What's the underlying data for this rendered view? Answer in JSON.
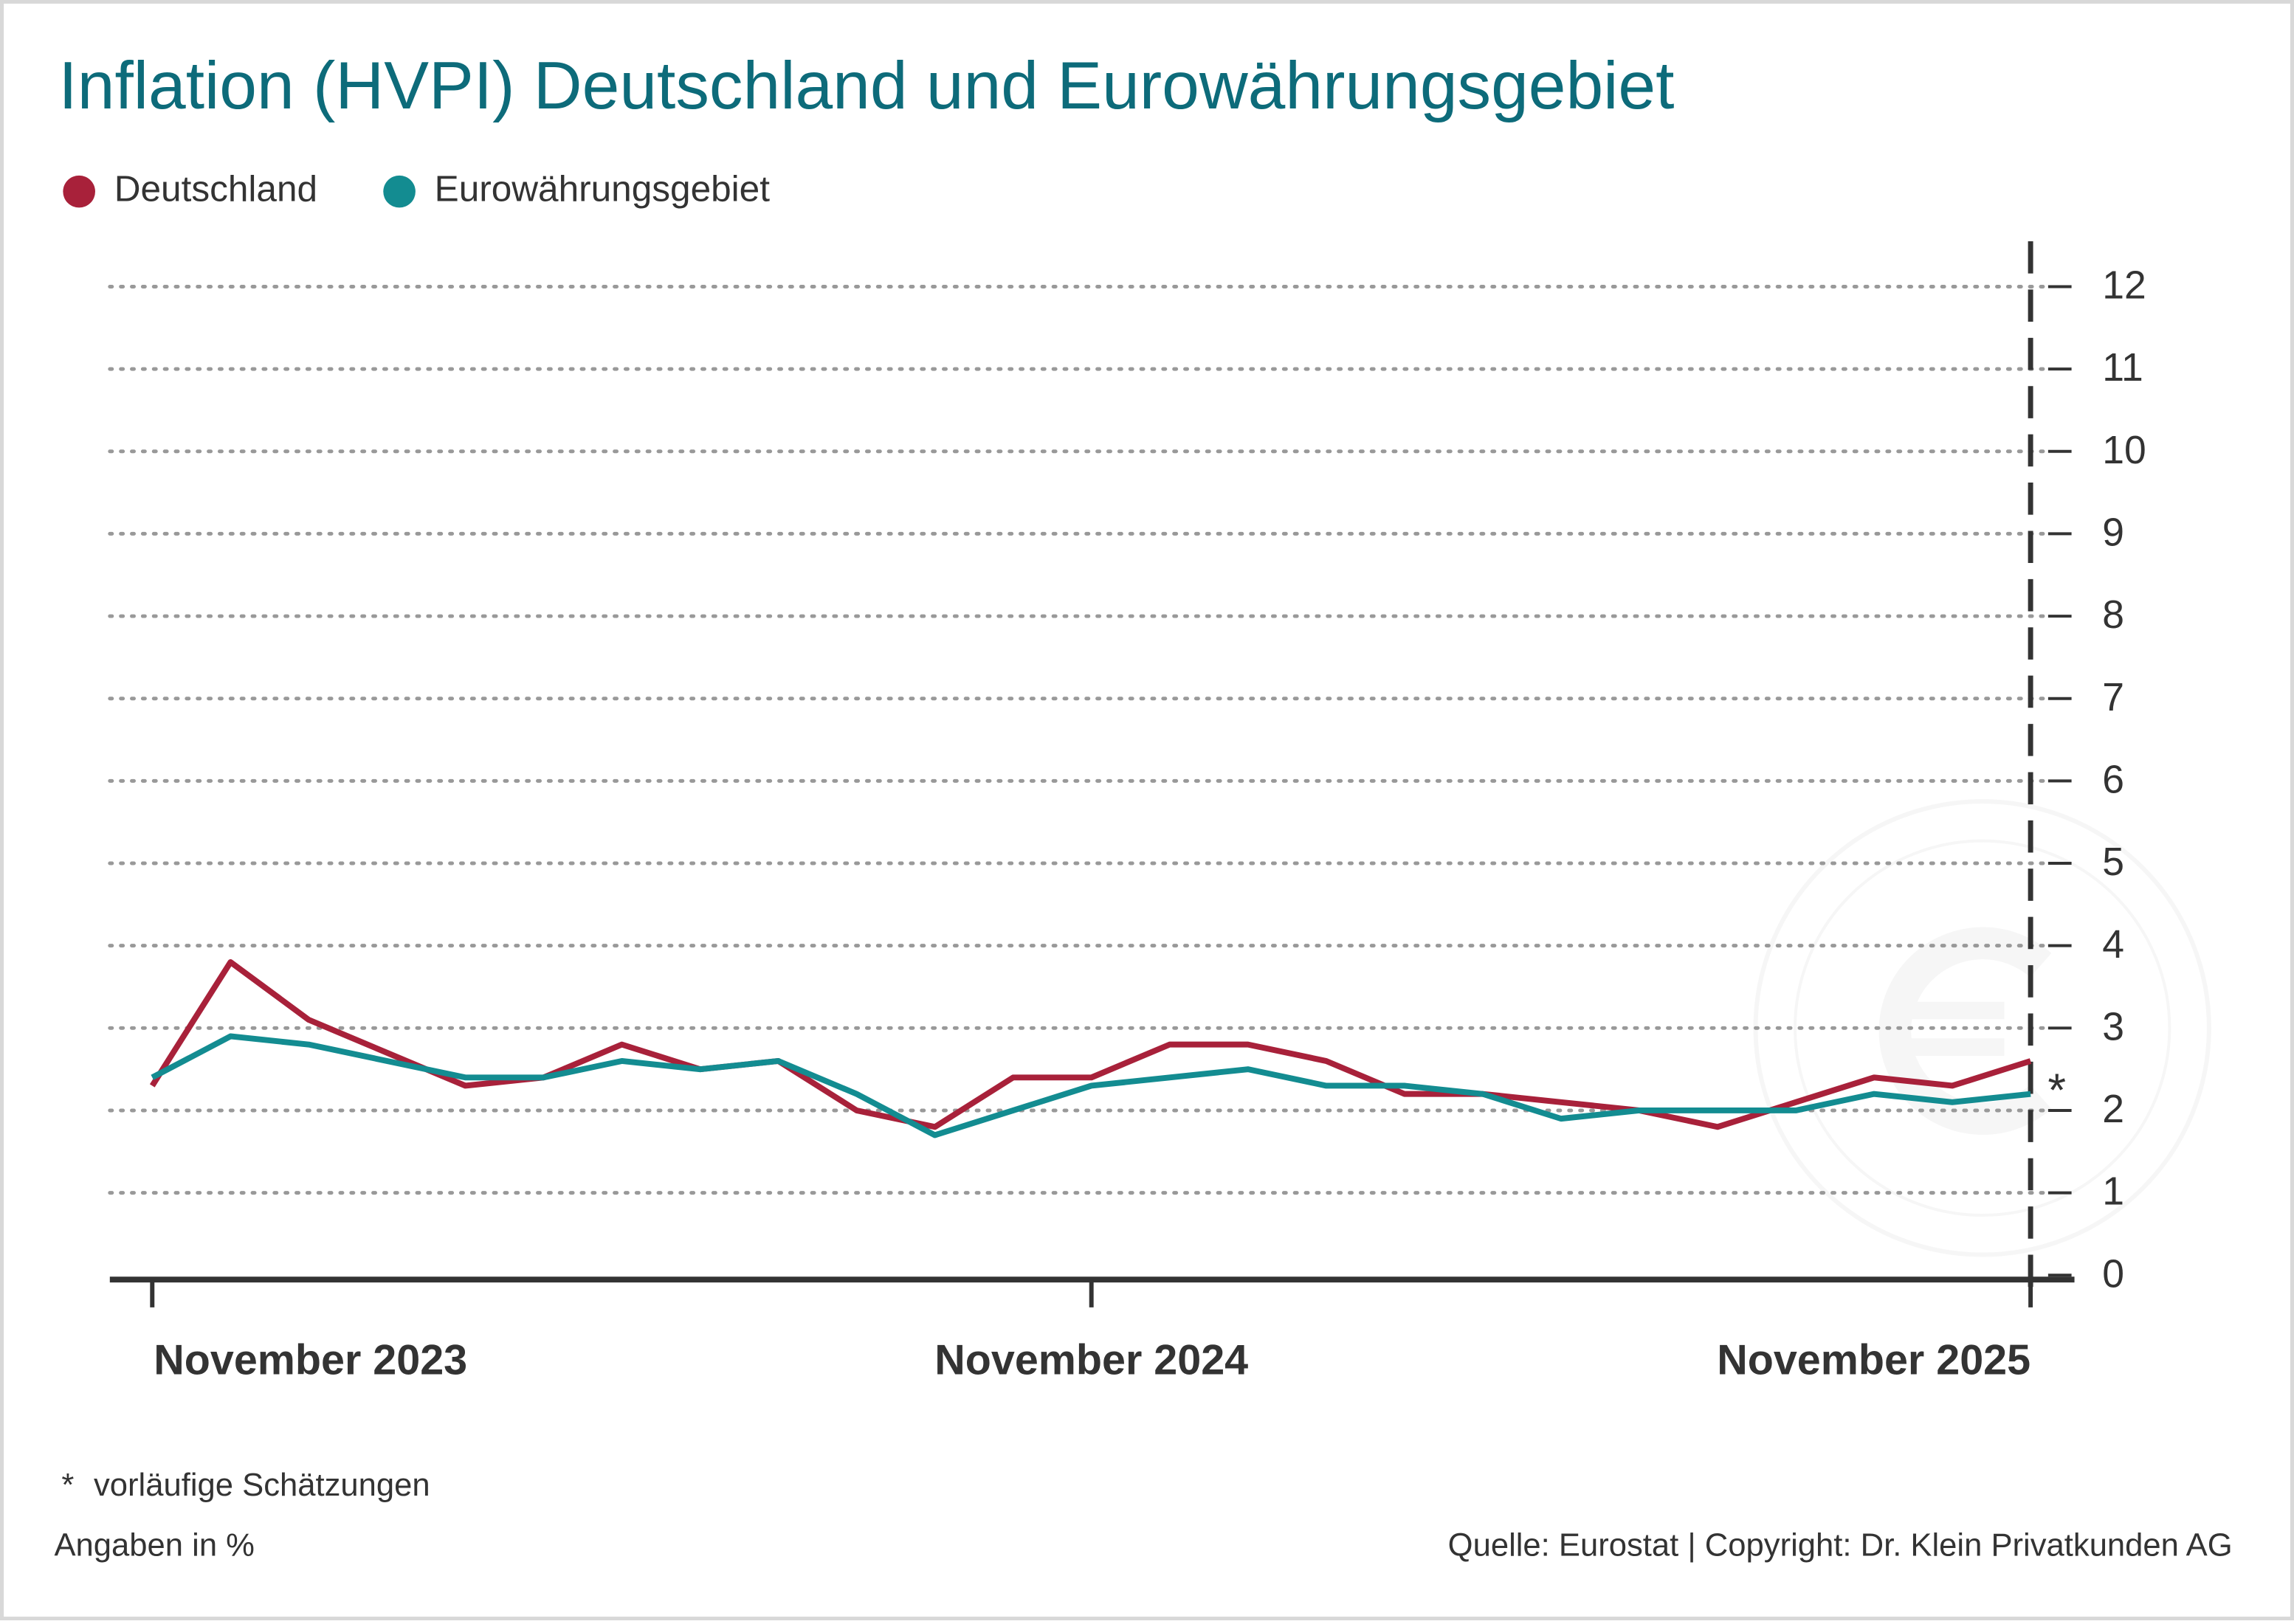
{
  "chart_data": {
    "type": "line",
    "title": "Inflation (HVPI) Deutschland und Eurowährungsgebiet",
    "categories": [
      "November 2023",
      null,
      null,
      null,
      null,
      null,
      null,
      null,
      null,
      null,
      null,
      null,
      "November 2024",
      null,
      null,
      null,
      null,
      null,
      null,
      null,
      null,
      null,
      null,
      null,
      "November 2025"
    ],
    "series": [
      {
        "name": "Deutschland",
        "color": "#a8213a",
        "values": [
          2.3,
          3.8,
          3.1,
          2.7,
          2.3,
          2.4,
          2.8,
          2.5,
          2.6,
          2.0,
          1.8,
          2.4,
          2.4,
          2.8,
          2.8,
          2.6,
          2.2,
          2.2,
          2.1,
          2.0,
          1.8,
          2.1,
          2.4,
          2.3,
          2.6
        ]
      },
      {
        "name": "Eurowährungsgebiet",
        "color": "#138c91",
        "values": [
          2.4,
          2.9,
          2.8,
          2.6,
          2.4,
          2.4,
          2.6,
          2.5,
          2.6,
          2.2,
          1.7,
          2.0,
          2.3,
          2.4,
          2.5,
          2.3,
          2.3,
          2.2,
          1.9,
          2.0,
          2.0,
          2.0,
          2.2,
          2.1,
          2.2
        ]
      }
    ],
    "ylim": [
      0,
      12
    ],
    "yticks": [
      0,
      1,
      2,
      3,
      4,
      5,
      6,
      7,
      8,
      9,
      10,
      11,
      12
    ],
    "grid": true,
    "legend": "top-left",
    "estimate_marker": "*",
    "footnote_marker": "*",
    "footnote": "vorläufige Schätzungen",
    "unit_note": "Angaben in %",
    "source": "Quelle: Eurostat | Copyright: Dr. Klein Privatkunden AG"
  }
}
